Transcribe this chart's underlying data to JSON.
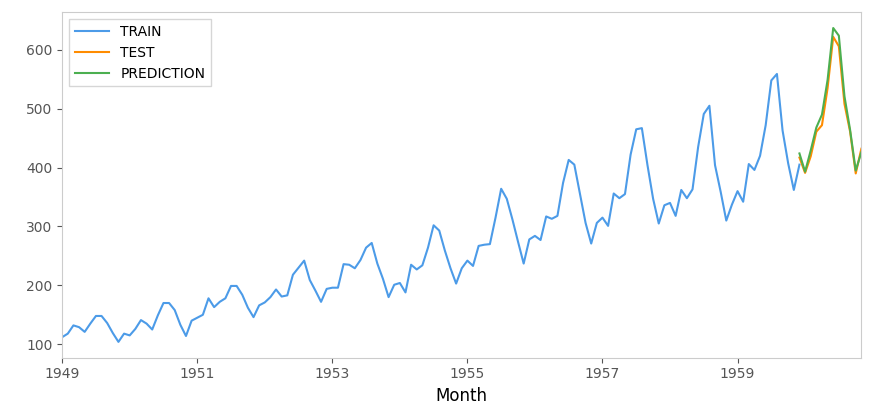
{
  "train": [
    112,
    118,
    132,
    129,
    121,
    135,
    148,
    148,
    136,
    119,
    104,
    118,
    115,
    126,
    141,
    135,
    125,
    149,
    170,
    170,
    158,
    133,
    114,
    140,
    145,
    150,
    178,
    163,
    172,
    178,
    199,
    199,
    184,
    162,
    146,
    166,
    171,
    180,
    193,
    181,
    183,
    218,
    230,
    242,
    209,
    191,
    172,
    194,
    196,
    196,
    236,
    235,
    229,
    243,
    264,
    272,
    237,
    211,
    180,
    201,
    204,
    188,
    235,
    227,
    234,
    264,
    302,
    293,
    259,
    229,
    203,
    229,
    242,
    233,
    267,
    269,
    270,
    315,
    364,
    347,
    312,
    274,
    237,
    278,
    284,
    277,
    317,
    313,
    318,
    374,
    413,
    405,
    355,
    306,
    271,
    306,
    315,
    301,
    356,
    348,
    355,
    422,
    465,
    467,
    404,
    347,
    305,
    336,
    340,
    318,
    362,
    348,
    363,
    435,
    491,
    505,
    404,
    359,
    310,
    337,
    360,
    342,
    406,
    396,
    420,
    472,
    548,
    559,
    463,
    407,
    362,
    405
  ],
  "test": [
    417,
    391,
    419,
    461,
    472,
    535,
    622,
    606,
    508,
    461,
    390,
    432
  ],
  "prediction": [
    424,
    393,
    429,
    468,
    490,
    549,
    637,
    624,
    521,
    464,
    395,
    426
  ],
  "train_color": "#4C9BE8",
  "test_color": "#FF8C00",
  "prediction_color": "#4CAF50",
  "xlabel": "Month",
  "legend_labels": [
    "TRAIN",
    "TEST",
    "PREDICTION"
  ],
  "x_tick_labels": [
    "1949",
    "1951",
    "1953",
    "1955",
    "1957",
    "1959"
  ],
  "x_tick_positions": [
    0,
    24,
    48,
    72,
    96,
    120
  ],
  "figsize": [
    8.88,
    4.11
  ],
  "dpi": 100
}
